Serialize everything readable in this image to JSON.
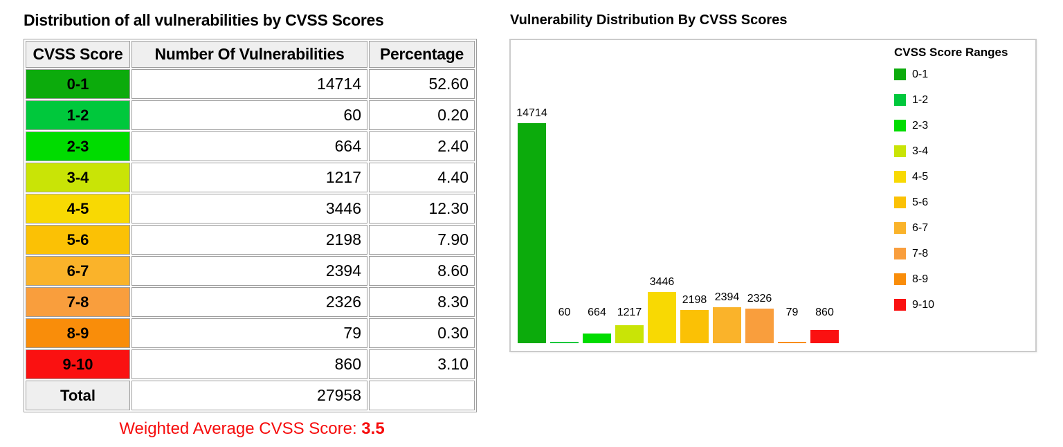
{
  "palette": [
    "#0cab0c",
    "#00c83c",
    "#00dc00",
    "#c9e406",
    "#f8d903",
    "#fbc105",
    "#fab32a",
    "#f99e3d",
    "#f98d0a",
    "#fa1111"
  ],
  "left": {
    "title": "Distribution of all vulnerabilities by CVSS Scores",
    "table": {
      "headers": [
        "CVSS Score",
        "Number Of Vulnerabilities",
        "Percentage"
      ],
      "rows": [
        {
          "range": "0-1",
          "count": "14714",
          "percentage": "52.60"
        },
        {
          "range": "1-2",
          "count": "60",
          "percentage": "0.20"
        },
        {
          "range": "2-3",
          "count": "664",
          "percentage": "2.40"
        },
        {
          "range": "3-4",
          "count": "1217",
          "percentage": "4.40"
        },
        {
          "range": "4-5",
          "count": "3446",
          "percentage": "12.30"
        },
        {
          "range": "5-6",
          "count": "2198",
          "percentage": "7.90"
        },
        {
          "range": "6-7",
          "count": "2394",
          "percentage": "8.60"
        },
        {
          "range": "7-8",
          "count": "2326",
          "percentage": "8.30"
        },
        {
          "range": "8-9",
          "count": "79",
          "percentage": "0.30"
        },
        {
          "range": "9-10",
          "count": "860",
          "percentage": "3.10"
        }
      ],
      "total_row": {
        "label": "Total",
        "count": "27958",
        "percentage": ""
      }
    },
    "weighted_average": {
      "label": "Weighted Average CVSS Score: ",
      "value": "3.5",
      "color": "#f60d0d"
    }
  },
  "right": {
    "title": "Vulnerability Distribution By CVSS Scores"
  },
  "chart_data": {
    "type": "bar",
    "title": "Vulnerability Distribution By CVSS Scores",
    "categories": [
      "0-1",
      "1-2",
      "2-3",
      "3-4",
      "4-5",
      "5-6",
      "6-7",
      "7-8",
      "8-9",
      "9-10"
    ],
    "values": [
      14714,
      60,
      664,
      1217,
      3446,
      2198,
      2394,
      2326,
      79,
      860
    ],
    "bar_labels": [
      "14714",
      "60",
      "664",
      "1217",
      "3446",
      "2198",
      "2394",
      "2326",
      "79",
      "860"
    ],
    "colors": [
      "#0cab0c",
      "#00c83c",
      "#00dc00",
      "#c9e406",
      "#f8d903",
      "#fbc105",
      "#fab32a",
      "#f99e3d",
      "#f98d0a",
      "#fa1111"
    ],
    "legend": {
      "title": "CVSS Score Ranges",
      "position": "right"
    },
    "xlabel": "",
    "ylabel": "",
    "ylim": [
      0,
      14714
    ],
    "grid": false,
    "axes_hidden": true
  }
}
